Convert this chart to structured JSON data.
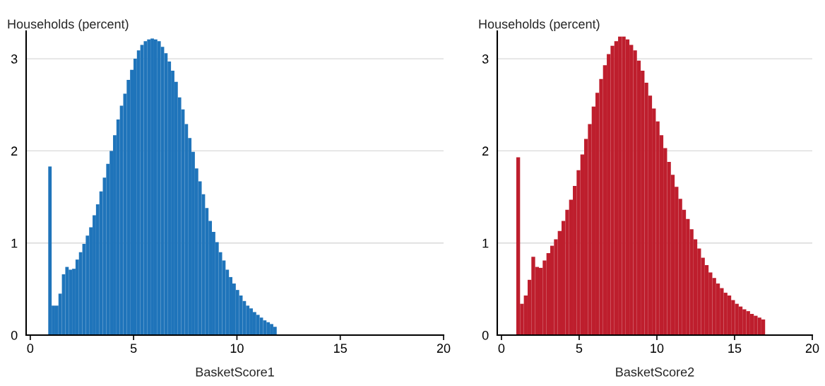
{
  "chart_data": [
    {
      "type": "histogram",
      "xlabel": "BasketScore1",
      "ylabel": "Households (percent)",
      "color": "#1f74ba",
      "bins": [
        0.87,
        1.035,
        1.2,
        1.365,
        1.53,
        1.695,
        1.86,
        2.025,
        2.19,
        2.355,
        2.52,
        2.685,
        2.85,
        3.015,
        3.18,
        3.345,
        3.51,
        3.675,
        3.84,
        4.005,
        4.17,
        4.335,
        4.5,
        4.665,
        4.83,
        4.995,
        5.16,
        5.325,
        5.49,
        5.655,
        5.82,
        5.985,
        6.15,
        6.315,
        6.48,
        6.645,
        6.81,
        6.975,
        7.14,
        7.305,
        7.47,
        7.635,
        7.8,
        7.965,
        8.13,
        8.295,
        8.46,
        8.625,
        8.79,
        8.955,
        9.12,
        9.285,
        9.45,
        9.615,
        9.78,
        9.945,
        10.11,
        10.275,
        10.44,
        10.605,
        10.77,
        10.935,
        11.1,
        11.265,
        11.43,
        11.595,
        11.76,
        11.925
      ],
      "values": [
        1.83,
        0.32,
        0.32,
        0.45,
        0.66,
        0.74,
        0.71,
        0.72,
        0.82,
        0.9,
        0.99,
        1.08,
        1.17,
        1.3,
        1.42,
        1.56,
        1.71,
        1.86,
        2.0,
        2.17,
        2.34,
        2.49,
        2.62,
        2.77,
        2.88,
        3.0,
        3.09,
        3.15,
        3.19,
        3.21,
        3.22,
        3.21,
        3.19,
        3.13,
        3.06,
        2.97,
        2.87,
        2.75,
        2.58,
        2.45,
        2.29,
        2.14,
        1.99,
        1.81,
        1.67,
        1.53,
        1.38,
        1.24,
        1.12,
        1.01,
        0.9,
        0.81,
        0.71,
        0.63,
        0.56,
        0.49,
        0.43,
        0.37,
        0.32,
        0.29,
        0.25,
        0.22,
        0.19,
        0.16,
        0.14,
        0.12,
        0.09
      ],
      "xlim": [
        -0.2,
        20
      ],
      "ylim": [
        0,
        3.3
      ],
      "xticks": [
        0,
        5,
        10,
        15,
        20
      ],
      "yticks": [
        0,
        1,
        2,
        3
      ],
      "grid": "y"
    },
    {
      "type": "histogram",
      "xlabel": "BasketScore2",
      "ylabel": "Households (percent)",
      "color": "#be1e2d",
      "bins": [
        0.955,
        1.198,
        1.44,
        1.683,
        1.925,
        2.168,
        2.411,
        2.653,
        2.896,
        3.138,
        3.381,
        3.623,
        3.866,
        4.109,
        4.351,
        4.594,
        4.836,
        5.079,
        5.321,
        5.564,
        5.807,
        6.049,
        6.292,
        6.534,
        6.777,
        7.019,
        7.262,
        7.505,
        7.747,
        7.99,
        8.232,
        8.475,
        8.717,
        8.96,
        9.203,
        9.445,
        9.688,
        9.93,
        10.173,
        10.415,
        10.658,
        10.901,
        11.143,
        11.386,
        11.628,
        11.871,
        12.113,
        12.356,
        12.599,
        12.841,
        13.084,
        13.326,
        13.569,
        13.811,
        14.054,
        14.297,
        14.539,
        14.782,
        15.024,
        15.267,
        15.509,
        15.752,
        15.995,
        16.237,
        16.48,
        16.722,
        16.965
      ],
      "values": [
        1.93,
        0.34,
        0.43,
        0.6,
        0.85,
        0.74,
        0.73,
        0.81,
        0.89,
        0.97,
        1.04,
        1.13,
        1.24,
        1.36,
        1.47,
        1.62,
        1.79,
        1.96,
        2.13,
        2.29,
        2.48,
        2.63,
        2.78,
        2.93,
        3.05,
        3.14,
        3.19,
        3.24,
        3.24,
        3.21,
        3.15,
        3.09,
        2.98,
        2.87,
        2.74,
        2.6,
        2.46,
        2.32,
        2.17,
        2.03,
        1.88,
        1.74,
        1.61,
        1.48,
        1.36,
        1.26,
        1.15,
        1.04,
        0.94,
        0.84,
        0.76,
        0.68,
        0.62,
        0.56,
        0.51,
        0.46,
        0.43,
        0.38,
        0.34,
        0.31,
        0.28,
        0.26,
        0.23,
        0.21,
        0.19,
        0.17
      ],
      "xlim": [
        -0.27,
        20
      ],
      "ylim": [
        0,
        3.3
      ],
      "xticks": [
        0,
        5,
        10,
        15,
        20
      ],
      "yticks": [
        0,
        1,
        2,
        3
      ],
      "grid": "y"
    }
  ]
}
